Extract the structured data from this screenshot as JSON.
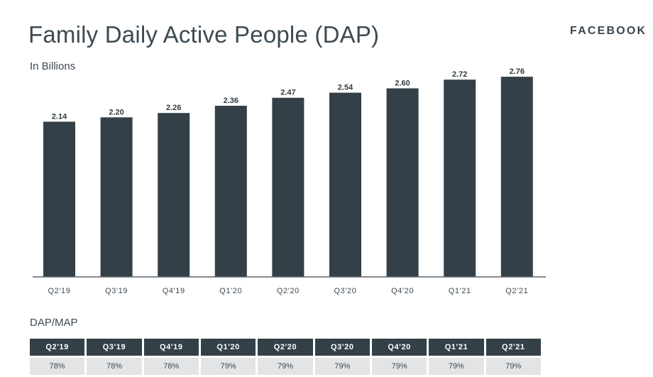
{
  "header": {
    "title": "Family Daily Active People (DAP)",
    "subtitle": "In Billions",
    "brand": "FACEBOOK"
  },
  "colors": {
    "bar": "#344047",
    "table_header": "#344047",
    "table_cell": "#e2e4e6"
  },
  "chart_data": {
    "type": "bar",
    "title": "Family Daily Active People (DAP)",
    "subtitle": "In Billions",
    "categories": [
      "Q2'19",
      "Q3'19",
      "Q4'19",
      "Q1'20",
      "Q2'20",
      "Q3'20",
      "Q4'20",
      "Q1'21",
      "Q2'21"
    ],
    "values": [
      2.14,
      2.2,
      2.26,
      2.36,
      2.47,
      2.54,
      2.6,
      2.72,
      2.76
    ],
    "value_labels": [
      "2.14",
      "2.20",
      "2.26",
      "2.36",
      "2.47",
      "2.54",
      "2.60",
      "2.72",
      "2.76"
    ],
    "ylim": [
      0,
      2.8
    ],
    "grid": false,
    "legend": "none"
  },
  "table": {
    "title": "DAP/MAP",
    "headers": [
      "Q2'19",
      "Q3'19",
      "Q4'19",
      "Q1'20",
      "Q2'20",
      "Q3'20",
      "Q4'20",
      "Q1'21",
      "Q2'21"
    ],
    "values": [
      "78%",
      "78%",
      "78%",
      "79%",
      "79%",
      "79%",
      "79%",
      "79%",
      "79%"
    ]
  }
}
